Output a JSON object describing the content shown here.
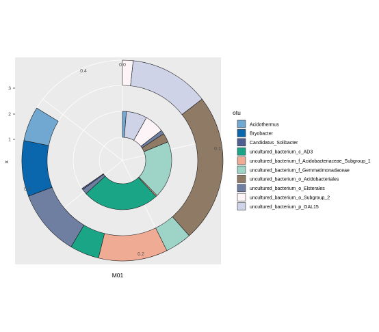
{
  "chart_data": {
    "type": "pie",
    "subtype": "polar stacked bar (nested donut)",
    "xlabel": "M01",
    "ylabel": "x",
    "y_ticks": [
      "1",
      "2",
      "3"
    ],
    "angle_ticks": [
      "0.0",
      "0.1",
      "0.2",
      "0.3",
      "0.4"
    ],
    "legend_title": "otu",
    "legend_position": "right",
    "panel_background": "#ebebeb",
    "grid": true,
    "categories": [
      "Acidothermus",
      "Bryobacter",
      "Candidatus_Solibacter",
      "uncultured_bacterium_c_AD3",
      "uncultured_bacterium_f_Acidobacteriaceae_Subgroup_1",
      "uncultured_bacterium_f_Gemmatimonadaceae",
      "uncultured_bacterium_o_Acidobacteriales",
      "uncultured_bacterium_o_Elsterales",
      "uncultured_bacterium_o_Subgroup_2",
      "uncultured_bacterium_p_GAL15"
    ],
    "colors": [
      "#70a8d1",
      "#0a67ad",
      "#4f5f91",
      "#1aa587",
      "#f0ab94",
      "#9ed4c8",
      "#8f7a66",
      "#6f7fa1",
      "#fdf4f8",
      "#cfd3e8"
    ],
    "series": [
      {
        "ring": "outer",
        "values": [
          {
            "otu": "uncultured_bacterium_o_Subgroup_2",
            "value": 0.04
          },
          {
            "otu": "uncultured_bacterium_p_GAL15",
            "value": 0.3
          },
          {
            "otu": "uncultured_bacterium_o_Acidobacteriales",
            "value": 0.56
          },
          {
            "otu": "uncultured_bacterium_f_Gemmatimonadaceae",
            "value": 0.1
          },
          {
            "otu": "uncultured_bacterium_f_Acidobacteriaceae_Subgroup_1",
            "value": 0.26
          },
          {
            "otu": "uncultured_bacterium_c_AD3",
            "value": 0.11
          },
          {
            "otu": "uncultured_bacterium_o_Elsterales",
            "value": 0.25
          },
          {
            "otu": "Bryobacter",
            "value": 0.21
          },
          {
            "otu": "Acidothermus",
            "value": 0.13
          }
        ]
      },
      {
        "ring": "inner",
        "values": [
          {
            "otu": "Acidothermus",
            "value": 0.03
          },
          {
            "otu": "uncultured_bacterium_p_GAL15",
            "value": 0.16
          },
          {
            "otu": "uncultured_bacterium_o_Subgroup_2",
            "value": 0.15
          },
          {
            "otu": "uncultured_bacterium_o_Elsterales",
            "value": 0.03
          },
          {
            "otu": "uncultured_bacterium_o_Acidobacteriales",
            "value": 0.07
          },
          {
            "otu": "uncultured_bacterium_f_Gemmatimonadaceae",
            "value": 0.44
          },
          {
            "otu": "uncultured_bacterium_f_Acidobacteriaceae_Subgroup_1",
            "value": 0.01
          },
          {
            "otu": "uncultured_bacterium_c_AD3",
            "value": 0.59
          },
          {
            "otu": "uncultured_bacterium_o_Elsterales",
            "value": 0.04
          },
          {
            "otu": "Candidatus_Solibacter",
            "value": 0.01
          }
        ]
      }
    ]
  }
}
